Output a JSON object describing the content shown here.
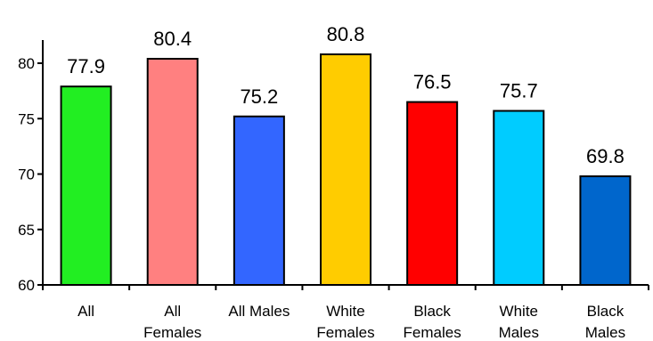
{
  "chart_data": {
    "type": "bar",
    "title": "",
    "xlabel": "",
    "ylabel": "",
    "ylim": [
      60,
      83
    ],
    "yticks": [
      60,
      65,
      70,
      75,
      80
    ],
    "grid": false,
    "legend": "none",
    "categories": [
      [
        "All"
      ],
      [
        "All",
        "Females"
      ],
      [
        "All Males"
      ],
      [
        "White",
        "Females"
      ],
      [
        "Black",
        "Females"
      ],
      [
        "White",
        "Males"
      ],
      [
        "Black",
        "Males"
      ]
    ],
    "values": [
      77.9,
      80.4,
      75.2,
      80.8,
      76.5,
      75.7,
      69.8
    ],
    "value_labels": [
      "77.9",
      "80.4",
      "75.2",
      "80.8",
      "76.5",
      "75.7",
      "69.8"
    ],
    "colors": [
      "#22ee22",
      "#ff8080",
      "#3366ff",
      "#ffcc00",
      "#ff0000",
      "#00ccff",
      "#0066cc"
    ]
  }
}
